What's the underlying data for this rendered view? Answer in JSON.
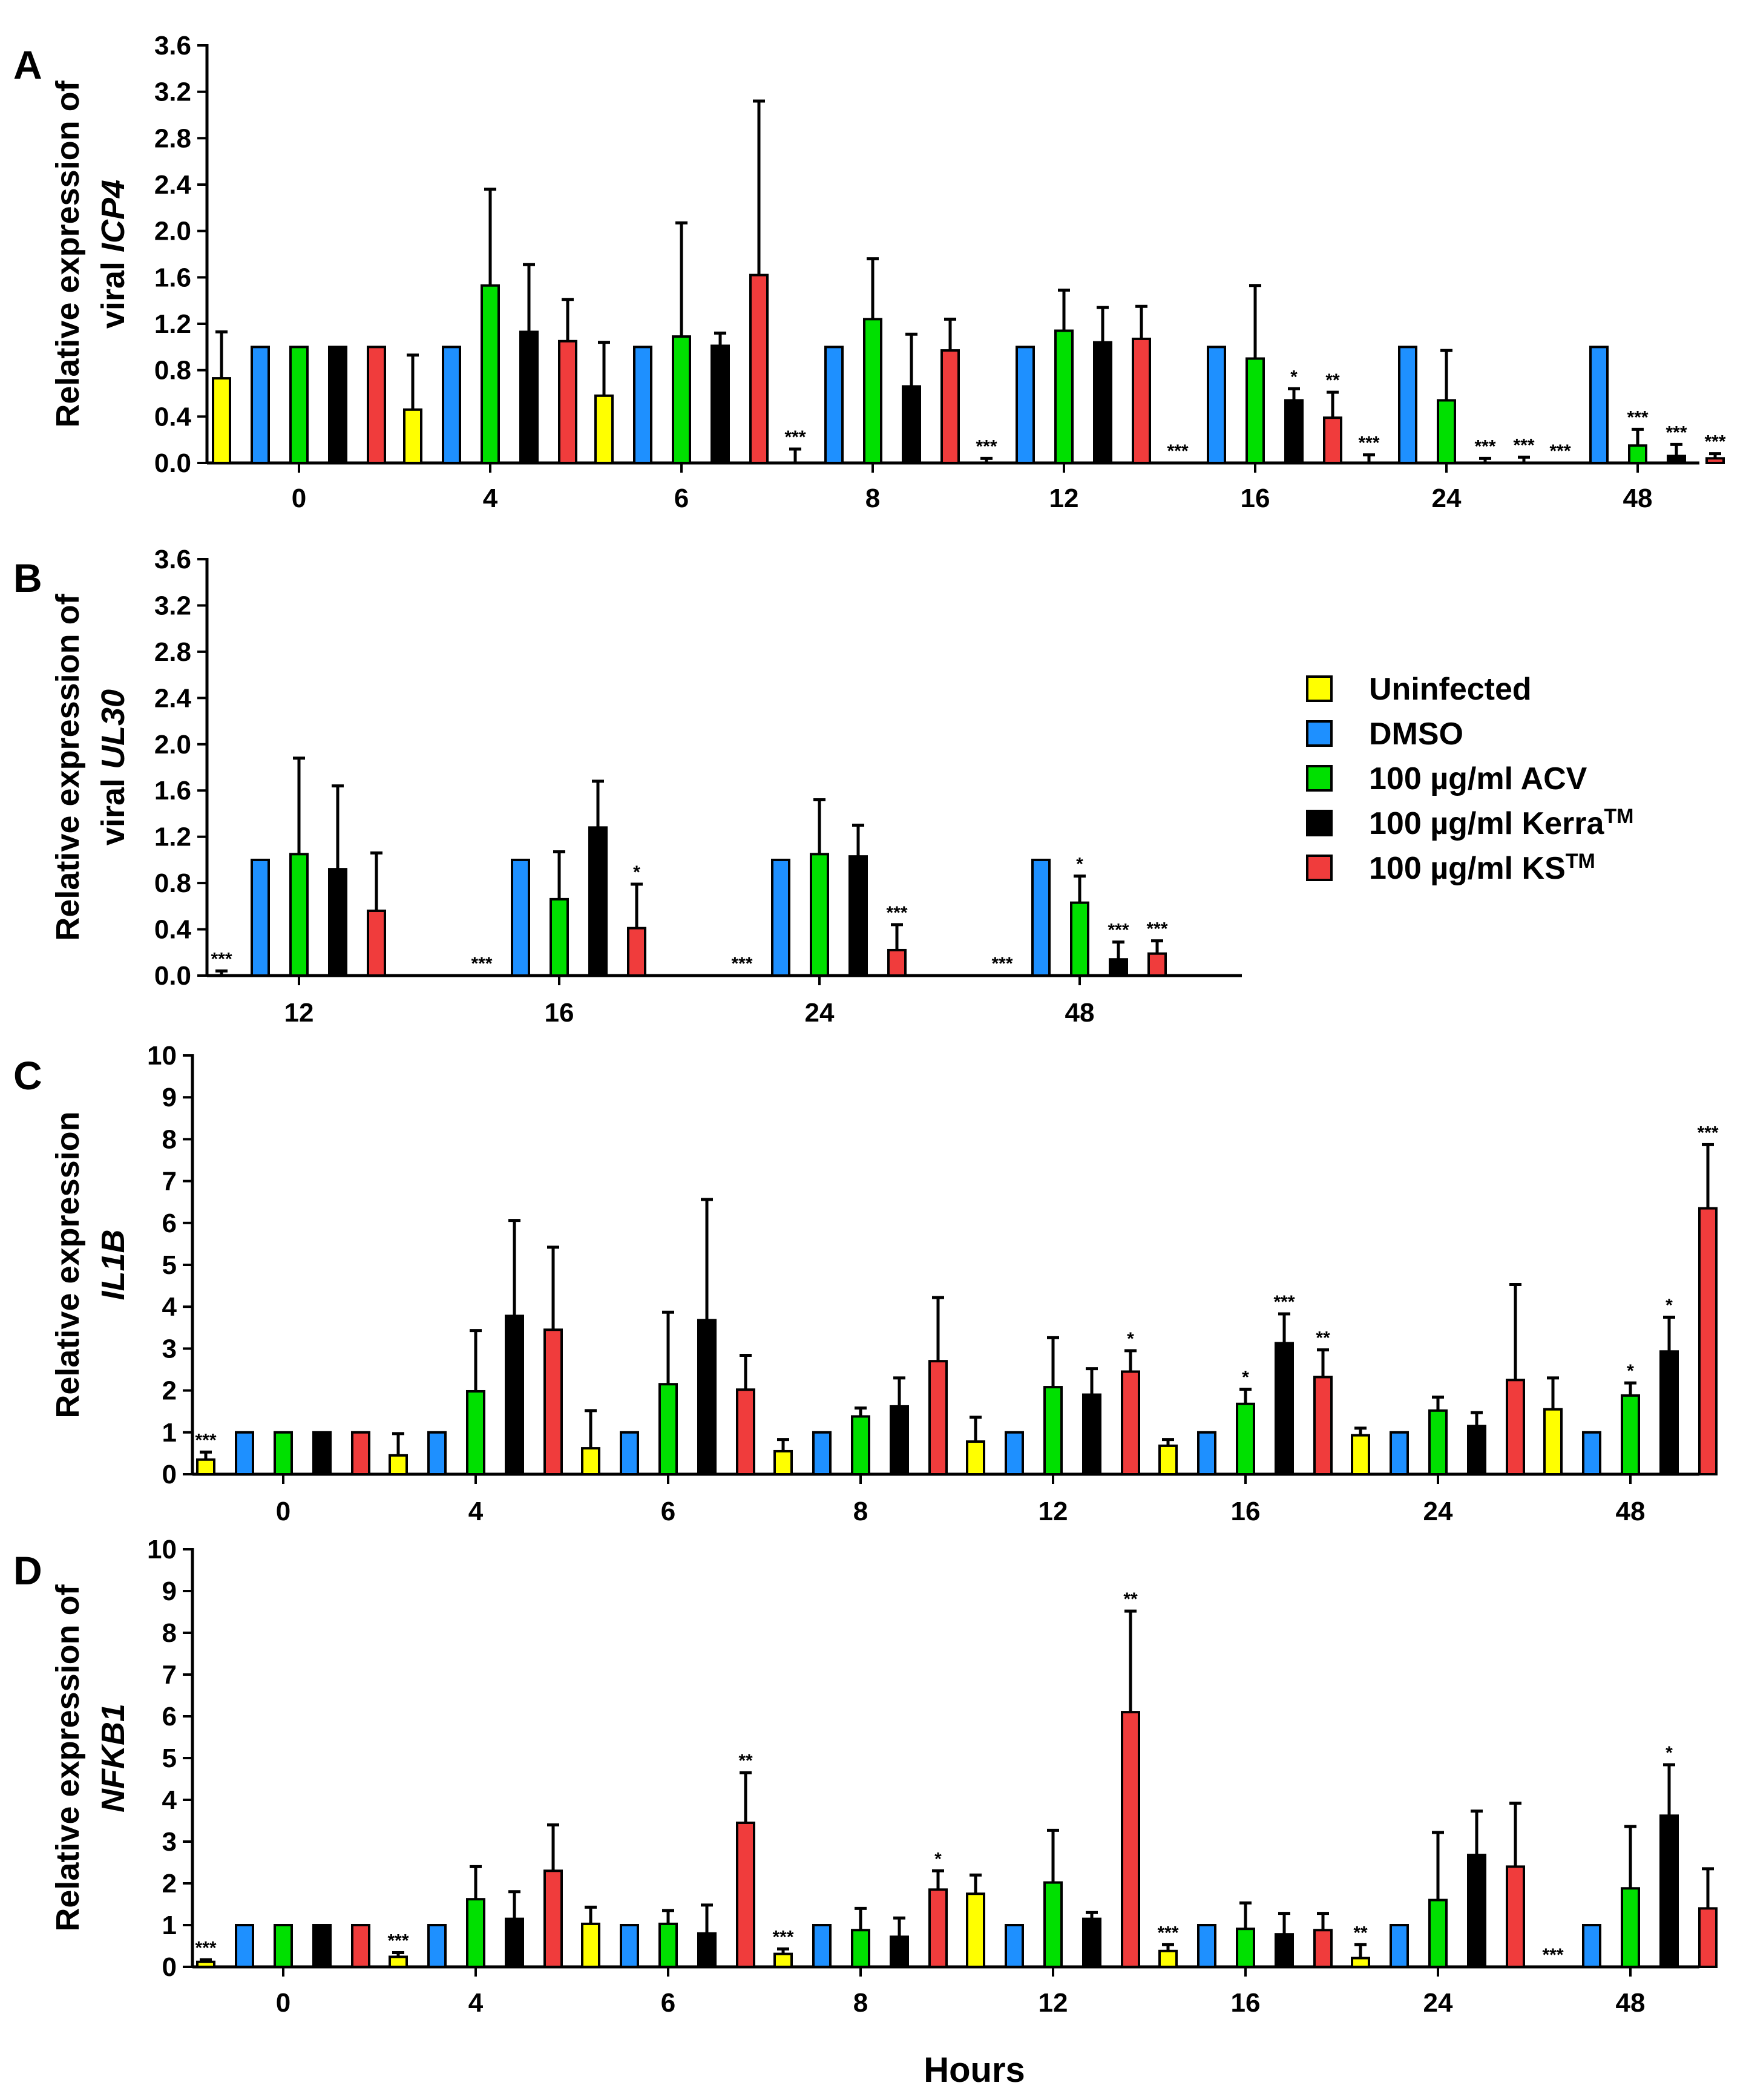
{
  "colors": {
    "Uninfected": "#ffff00",
    "DMSO": "#1e90ff",
    "ACV": "#00e000",
    "Kerra": "#000000",
    "KS": "#f03c3c"
  },
  "x_axis_title": "Hours",
  "legend": {
    "items": [
      {
        "label": "Uninfected",
        "sup": ""
      },
      {
        "label": "DMSO",
        "sup": ""
      },
      {
        "label": "100 µg/ml ACV",
        "sup": ""
      },
      {
        "label": "100 µg/ml Kerra",
        "sup": "TM"
      },
      {
        "label": "100 µg/ml KS",
        "sup": "TM"
      }
    ]
  },
  "chart_data": [
    {
      "panel": "A",
      "type": "bar",
      "ylabel_line1": "Relative expression of",
      "ylabel_line2_prefix": "viral ",
      "ylabel_gene": "ICP4",
      "ylim": [
        0,
        3.6
      ],
      "yticks": [
        "0.0",
        "0.4",
        "0.8",
        "1.2",
        "1.6",
        "2.0",
        "2.4",
        "2.8",
        "3.2",
        "3.6"
      ],
      "categories": [
        "0",
        "4",
        "6",
        "8",
        "12",
        "16",
        "24",
        "48"
      ],
      "series": [
        {
          "name": "Uninfected",
          "values": [
            0.73,
            0.46,
            0.58,
            0.0,
            0.0,
            0.0,
            0.0,
            0.0
          ],
          "errors": [
            0.4,
            0.47,
            0.46,
            0.12,
            0.04,
            0.0,
            0.07,
            0.0
          ],
          "sig": [
            "",
            "",
            "",
            "***",
            "***",
            "***",
            "***",
            "***"
          ]
        },
        {
          "name": "DMSO",
          "values": [
            1.0,
            1.0,
            1.0,
            1.0,
            1.0,
            1.0,
            1.0,
            1.0
          ],
          "errors": [
            0,
            0,
            0,
            0,
            0,
            0,
            0,
            0
          ],
          "sig": [
            "",
            "",
            "",
            "",
            "",
            "",
            "",
            ""
          ]
        },
        {
          "name": "ACV",
          "values": [
            1.0,
            1.53,
            1.09,
            1.24,
            1.14,
            0.9,
            0.54,
            0.15
          ],
          "errors": [
            0,
            0.83,
            0.98,
            0.52,
            0.35,
            0.63,
            0.43,
            0.14
          ],
          "sig": [
            "",
            "",
            "",
            "",
            "",
            "",
            "",
            "***"
          ]
        },
        {
          "name": "Kerra",
          "values": [
            1.0,
            1.13,
            1.01,
            0.66,
            1.04,
            0.54,
            0.0,
            0.06
          ],
          "errors": [
            0,
            0.58,
            0.11,
            0.45,
            0.3,
            0.1,
            0.04,
            0.1
          ],
          "sig": [
            "",
            "",
            "",
            "",
            "",
            "*",
            "***",
            "***"
          ]
        },
        {
          "name": "KS",
          "values": [
            1.0,
            1.05,
            1.62,
            0.97,
            1.07,
            0.39,
            0.0,
            0.04
          ],
          "errors": [
            0,
            0.36,
            1.5,
            0.27,
            0.28,
            0.22,
            0.05,
            0.04
          ],
          "sig": [
            "",
            "",
            "",
            "",
            "",
            "**",
            "***",
            "***"
          ]
        }
      ]
    },
    {
      "panel": "B",
      "type": "bar",
      "ylabel_line1": "Relative expression of",
      "ylabel_line2_prefix": "viral ",
      "ylabel_gene": "UL30",
      "ylim": [
        0,
        3.6
      ],
      "yticks": [
        "0.0",
        "0.4",
        "0.8",
        "1.2",
        "1.6",
        "2.0",
        "2.4",
        "2.8",
        "3.2",
        "3.6"
      ],
      "categories": [
        "12",
        "16",
        "24",
        "48"
      ],
      "series": [
        {
          "name": "Uninfected",
          "values": [
            0,
            0,
            0,
            0
          ],
          "errors": [
            0.04,
            0,
            0,
            0
          ],
          "sig": [
            "***",
            "***",
            "***",
            "***"
          ]
        },
        {
          "name": "DMSO",
          "values": [
            1.0,
            1.0,
            1.0,
            1.0
          ],
          "errors": [
            0,
            0,
            0,
            0
          ],
          "sig": [
            "",
            "",
            "",
            ""
          ]
        },
        {
          "name": "ACV",
          "values": [
            1.05,
            0.66,
            1.05,
            0.63
          ],
          "errors": [
            0.83,
            0.41,
            0.47,
            0.23
          ],
          "sig": [
            "",
            "",
            "",
            "*"
          ]
        },
        {
          "name": "Kerra",
          "values": [
            0.92,
            1.28,
            1.03,
            0.14
          ],
          "errors": [
            0.72,
            0.4,
            0.27,
            0.15
          ],
          "sig": [
            "",
            "",
            "",
            "***"
          ]
        },
        {
          "name": "KS",
          "values": [
            0.56,
            0.41,
            0.22,
            0.19
          ],
          "errors": [
            0.5,
            0.38,
            0.22,
            0.11
          ],
          "sig": [
            "",
            "*",
            "***",
            "***"
          ]
        }
      ]
    },
    {
      "panel": "C",
      "type": "bar",
      "ylabel_line1": "Relative expression",
      "ylabel_line2_prefix": "",
      "ylabel_gene": "IL1B",
      "ylim": [
        0,
        10
      ],
      "yticks": [
        "0",
        "1",
        "2",
        "3",
        "4",
        "5",
        "6",
        "7",
        "8",
        "9",
        "10"
      ],
      "categories": [
        "0",
        "4",
        "6",
        "8",
        "12",
        "16",
        "24",
        "48"
      ],
      "series": [
        {
          "name": "Uninfected",
          "values": [
            0.35,
            0.45,
            0.62,
            0.55,
            0.78,
            0.68,
            0.93,
            1.55
          ],
          "errors": [
            0.18,
            0.52,
            0.9,
            0.28,
            0.58,
            0.15,
            0.17,
            0.75
          ],
          "sig": [
            "***",
            "",
            "",
            "",
            "",
            "",
            "",
            ""
          ]
        },
        {
          "name": "DMSO",
          "values": [
            1.0,
            1.0,
            1.0,
            1.0,
            1.0,
            1.0,
            1.0,
            1.0
          ],
          "errors": [
            0,
            0,
            0,
            0,
            0,
            0,
            0,
            0
          ],
          "sig": [
            "",
            "",
            "",
            "",
            "",
            "",
            "",
            ""
          ]
        },
        {
          "name": "ACV",
          "values": [
            1.0,
            1.98,
            2.15,
            1.38,
            2.08,
            1.68,
            1.52,
            1.88
          ],
          "errors": [
            0,
            1.45,
            1.72,
            0.2,
            1.18,
            0.35,
            0.32,
            0.3
          ],
          "sig": [
            "",
            "",
            "",
            "",
            "",
            "*",
            "",
            "*"
          ]
        },
        {
          "name": "Kerra",
          "values": [
            1.0,
            3.78,
            3.68,
            1.62,
            1.9,
            3.13,
            1.15,
            2.93
          ],
          "errors": [
            0,
            2.28,
            2.88,
            0.68,
            0.62,
            0.7,
            0.32,
            0.82
          ],
          "sig": [
            "",
            "",
            "",
            "",
            "",
            "***",
            "",
            "*"
          ]
        },
        {
          "name": "KS",
          "values": [
            1.0,
            3.45,
            2.02,
            2.7,
            2.45,
            2.32,
            2.25,
            6.35
          ],
          "errors": [
            0,
            1.97,
            0.82,
            1.52,
            0.5,
            0.65,
            2.28,
            1.52
          ],
          "sig": [
            "",
            "",
            "",
            "",
            "*",
            "**",
            "",
            "***"
          ]
        }
      ]
    },
    {
      "panel": "D",
      "type": "bar",
      "ylabel_line1": "Relative expression of",
      "ylabel_line2_prefix": "",
      "ylabel_gene": "NFKB1",
      "ylim": [
        0,
        10
      ],
      "yticks": [
        "0",
        "1",
        "2",
        "3",
        "4",
        "5",
        "6",
        "7",
        "8",
        "9",
        "10"
      ],
      "categories": [
        "0",
        "4",
        "6",
        "8",
        "12",
        "16",
        "24",
        "48"
      ],
      "series": [
        {
          "name": "Uninfected",
          "values": [
            0.12,
            0.24,
            1.03,
            0.31,
            1.75,
            0.38,
            0.21,
            0.0
          ],
          "errors": [
            0.05,
            0.1,
            0.4,
            0.12,
            0.45,
            0.15,
            0.32,
            0.0
          ],
          "sig": [
            "***",
            "***",
            "",
            "***",
            "",
            "***",
            "**",
            "***"
          ]
        },
        {
          "name": "DMSO",
          "values": [
            1.0,
            1.0,
            1.0,
            1.0,
            1.0,
            1.0,
            1.0,
            1.0
          ],
          "errors": [
            0,
            0,
            0,
            0,
            0,
            0,
            0,
            0
          ],
          "sig": [
            "",
            "",
            "",
            "",
            "",
            "",
            "",
            ""
          ]
        },
        {
          "name": "ACV",
          "values": [
            1.0,
            1.62,
            1.03,
            0.88,
            2.02,
            0.91,
            1.6,
            1.88
          ],
          "errors": [
            0,
            0.78,
            0.32,
            0.52,
            1.25,
            0.62,
            1.62,
            1.48
          ],
          "sig": [
            "",
            "",
            "",
            "",
            "",
            "",
            "",
            ""
          ]
        },
        {
          "name": "Kerra",
          "values": [
            1.0,
            1.15,
            0.8,
            0.72,
            1.15,
            0.78,
            2.68,
            3.62
          ],
          "errors": [
            0,
            0.65,
            0.68,
            0.45,
            0.15,
            0.5,
            1.05,
            1.22
          ],
          "sig": [
            "",
            "",
            "",
            "",
            "",
            "",
            "",
            "*"
          ]
        },
        {
          "name": "KS",
          "values": [
            1.0,
            2.3,
            3.45,
            1.85,
            6.1,
            0.88,
            2.4,
            1.4
          ],
          "errors": [
            0,
            1.1,
            1.2,
            0.45,
            2.42,
            0.4,
            1.52,
            0.95
          ],
          "sig": [
            "",
            "",
            "**",
            "*",
            "**",
            "",
            "",
            ""
          ]
        }
      ]
    }
  ]
}
